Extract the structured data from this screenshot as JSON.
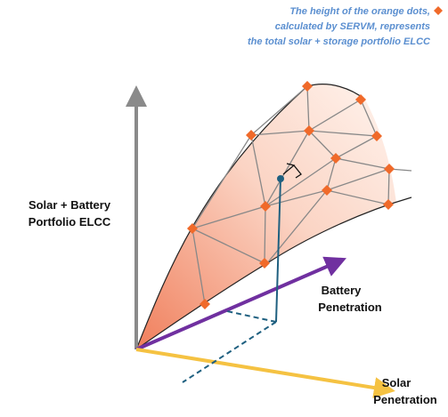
{
  "annotation": {
    "lines": [
      "The height of the orange dots,",
      "calculated by SERVM, represents",
      "the total solar + storage portfolio ELCC"
    ]
  },
  "axes": {
    "vertical": {
      "lines": [
        "Solar + Battery",
        "Portfolio ELCC"
      ]
    },
    "battery": {
      "lines": [
        "Battery",
        "Penetration"
      ]
    },
    "solar": {
      "lines": [
        "Solar",
        "Penetration"
      ]
    }
  }
}
